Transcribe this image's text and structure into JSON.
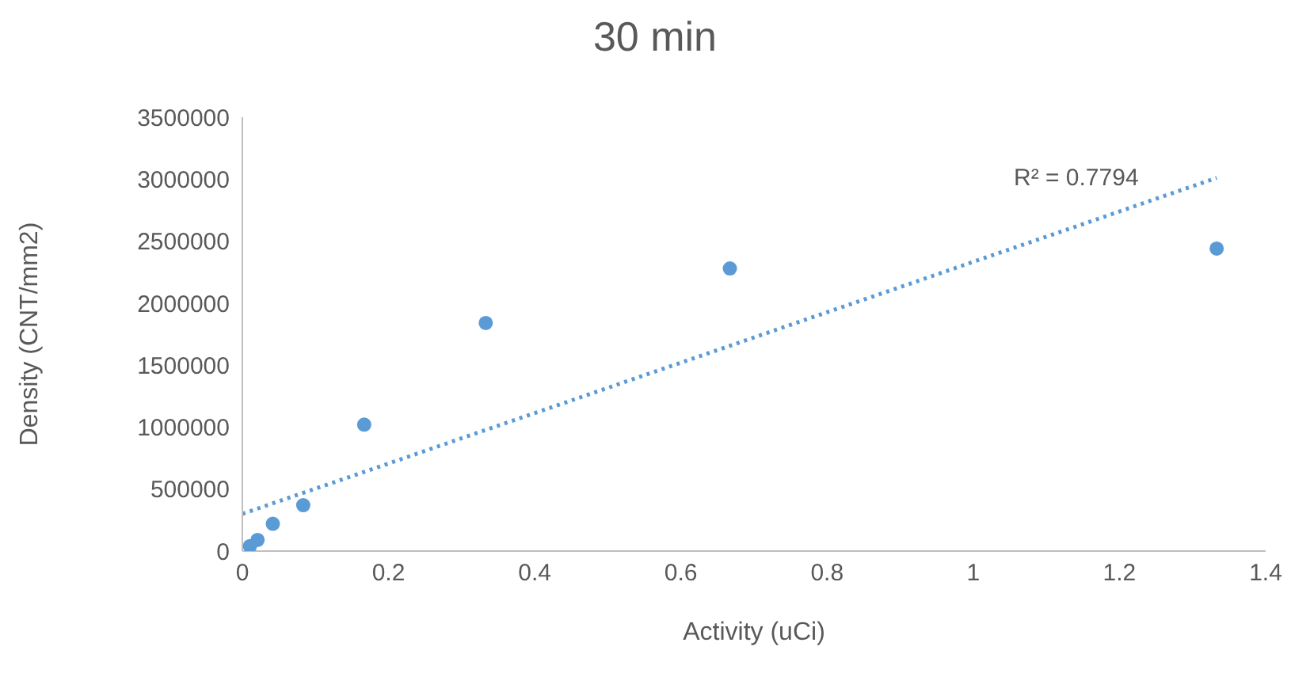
{
  "chart_data": {
    "type": "scatter",
    "title": "30 min",
    "xlabel": "Activity (uCi)",
    "ylabel": "Density (CNT/mm2)",
    "xlim": [
      0,
      1.4
    ],
    "xticks": [
      0,
      0.2,
      0.4,
      0.6,
      0.8,
      1,
      1.2,
      1.4
    ],
    "ylim": [
      0,
      3500000
    ],
    "yticks": [
      0,
      500000,
      1000000,
      1500000,
      2000000,
      2500000,
      3000000,
      3500000
    ],
    "grid": false,
    "legend": false,
    "marker": "circle",
    "annotations": [
      "R² = 0.7794"
    ],
    "series": [
      {
        "type": "scatter",
        "color": "#5b9bd5",
        "x": [
          1.333,
          0.667,
          0.333,
          0.1667,
          0.0833,
          0.0417,
          0.0208,
          0.0104
        ],
        "values": [
          2440000,
          2280000,
          1840000,
          1020000,
          370000,
          220000,
          90000,
          40000
        ]
      },
      {
        "type": "line",
        "color": "#5b9bd5",
        "line_style": "dotted",
        "marker": "none",
        "x": [
          0,
          1.333
        ],
        "values": [
          300000,
          3010000
        ]
      }
    ]
  }
}
